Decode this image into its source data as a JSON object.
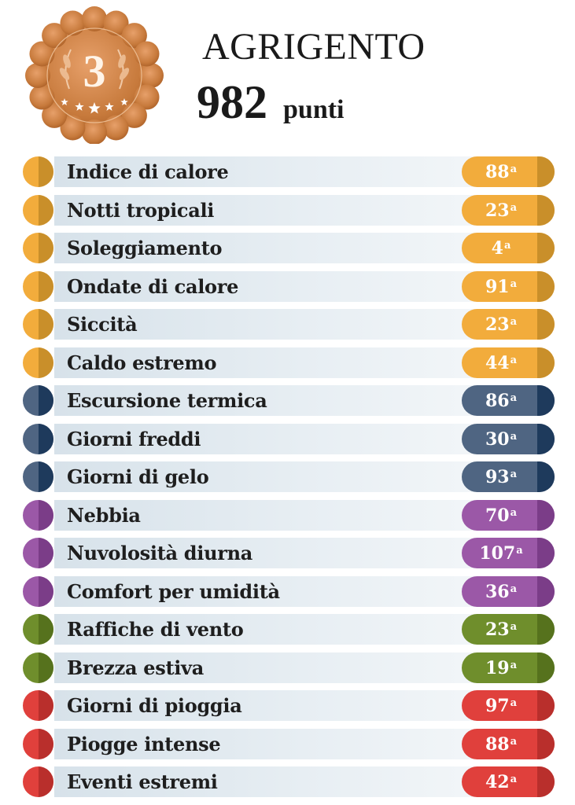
{
  "header": {
    "rank": "3",
    "city": "AGRIGENTO",
    "score": "982",
    "score_unit": "punti"
  },
  "colors": {
    "heat": "#f2ac3c",
    "heat_dark": "#c98f2a",
    "cold": "#4f6582",
    "cold_dark": "#1e3a5c",
    "humidity": "#9b58a7",
    "humidity_dark": "#7b3d88",
    "wind": "#6f8e2c",
    "wind_dark": "#56721d",
    "rain": "#e0403c",
    "rain_dark": "#b92f2c",
    "medal": "#c77a3c"
  },
  "indicators": [
    {
      "label": "Indice di calore",
      "rank": "88",
      "suffix": "a",
      "group": "heat"
    },
    {
      "label": "Notti tropicali",
      "rank": "23",
      "suffix": "a",
      "group": "heat"
    },
    {
      "label": "Soleggiamento",
      "rank": "4",
      "suffix": "a",
      "group": "heat"
    },
    {
      "label": "Ondate di calore",
      "rank": "91",
      "suffix": "a",
      "group": "heat"
    },
    {
      "label": "Siccità",
      "rank": "23",
      "suffix": "a",
      "group": "heat"
    },
    {
      "label": "Caldo estremo",
      "rank": "44",
      "suffix": "a",
      "group": "heat"
    },
    {
      "label": "Escursione termica",
      "rank": "86",
      "suffix": "a",
      "group": "cold"
    },
    {
      "label": "Giorni freddi",
      "rank": "30",
      "suffix": "a",
      "group": "cold"
    },
    {
      "label": "Giorni di gelo",
      "rank": "93",
      "suffix": "a",
      "group": "cold"
    },
    {
      "label": "Nebbia",
      "rank": "70",
      "suffix": "a",
      "group": "humidity"
    },
    {
      "label": "Nuvolosità diurna",
      "rank": "107",
      "suffix": "a",
      "group": "humidity"
    },
    {
      "label": "Comfort per umidità",
      "rank": "36",
      "suffix": "a",
      "group": "humidity"
    },
    {
      "label": "Raffiche di vento",
      "rank": "23",
      "suffix": "a",
      "group": "wind"
    },
    {
      "label": "Brezza estiva",
      "rank": "19",
      "suffix": "a",
      "group": "wind"
    },
    {
      "label": "Giorni di pioggia",
      "rank": "97",
      "suffix": "a",
      "group": "rain"
    },
    {
      "label": "Piogge intense",
      "rank": "88",
      "suffix": "a",
      "group": "rain"
    },
    {
      "label": "Eventi estremi",
      "rank": "42",
      "suffix": "a",
      "group": "rain"
    }
  ]
}
